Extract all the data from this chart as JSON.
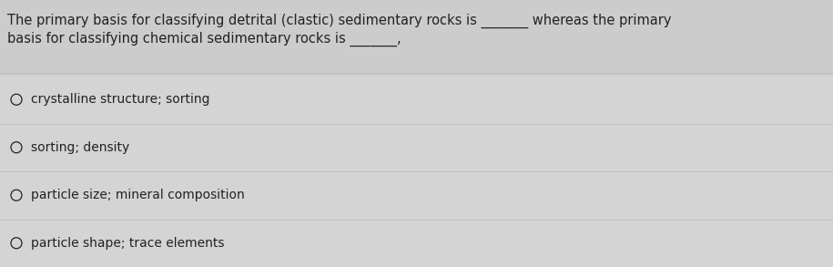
{
  "question_line1": "The primary basis for classifying detrital (clastic) sedimentary rocks is _______ whereas the primary",
  "question_line2": "basis for classifying chemical sedimentary rocks is _______,",
  "options": [
    "crystalline structure; sorting",
    "sorting; density",
    "particle size; mineral composition",
    "particle shape; trace elements"
  ],
  "bg_color_top": "#cccccc",
  "bg_color_bottom": "#d6d6d6",
  "text_color": "#222222",
  "question_fontsize": 10.5,
  "option_fontsize": 10.0,
  "divider_color": "#bbbbbb",
  "divider_linewidth": 0.6,
  "option_area_color": "#d4d4d4"
}
